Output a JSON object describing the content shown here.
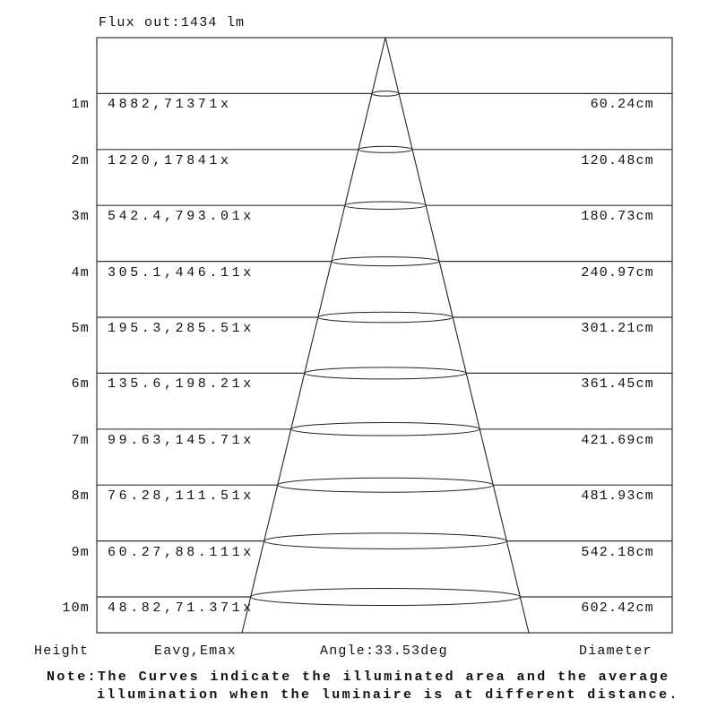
{
  "flux_out": "Flux out:1434 lm",
  "rows": [
    {
      "height": "1m",
      "illuminance": "4882,71371x",
      "diameter": "60.24cm"
    },
    {
      "height": "2m",
      "illuminance": "1220,17841x",
      "diameter": "120.48cm"
    },
    {
      "height": "3m",
      "illuminance": "542.4,793.01x",
      "diameter": "180.73cm"
    },
    {
      "height": "4m",
      "illuminance": "305.1,446.11x",
      "diameter": "240.97cm"
    },
    {
      "height": "5m",
      "illuminance": "195.3,285.51x",
      "diameter": "301.21cm"
    },
    {
      "height": "6m",
      "illuminance": "135.6,198.21x",
      "diameter": "361.45cm"
    },
    {
      "height": "7m",
      "illuminance": "99.63,145.71x",
      "diameter": "421.69cm"
    },
    {
      "height": "8m",
      "illuminance": "76.28,111.51x",
      "diameter": "481.93cm"
    },
    {
      "height": "9m",
      "illuminance": "60.27,88.111x",
      "diameter": "542.18cm"
    },
    {
      "height": "10m",
      "illuminance": "48.82,71.371x",
      "diameter": "602.42cm"
    }
  ],
  "footer": {
    "height_label": "Height",
    "eavg_label": "Eavg,Emax",
    "angle_label": "Angle:33.53deg",
    "diameter_label": "Diameter"
  },
  "note": {
    "line1": "Note:The Curves indicate the illuminated area and the average",
    "line2": "illumination when the luminaire is at different distance."
  }
}
